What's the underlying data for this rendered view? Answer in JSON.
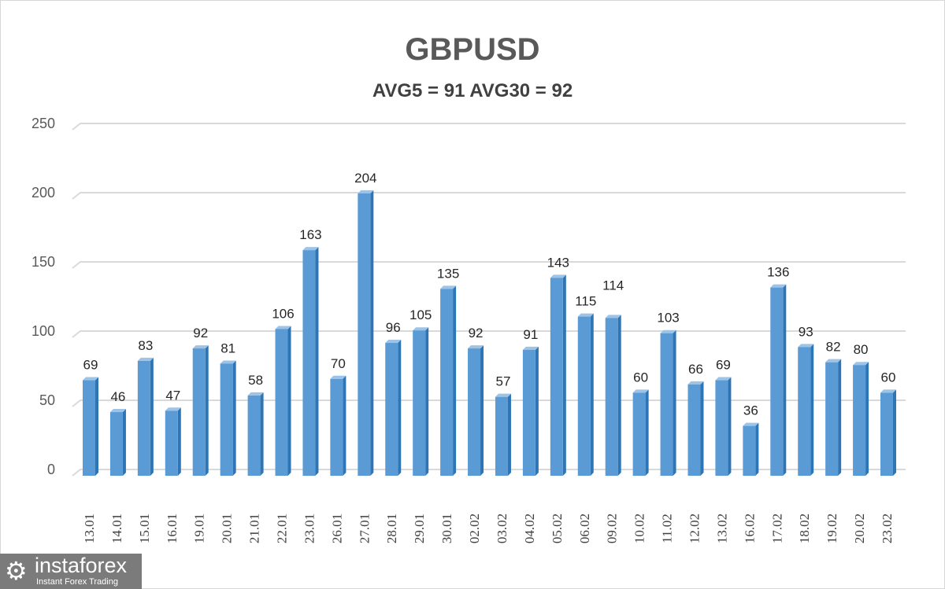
{
  "chart_data": {
    "type": "bar",
    "title": "GBPUSD",
    "subtitle": "AVG5 = 91 AVG30 = 92",
    "categories": [
      "13.01",
      "14.01",
      "15.01",
      "16.01",
      "19.01",
      "20.01",
      "21.01",
      "22.01",
      "23.01",
      "26.01",
      "27.01",
      "28.01",
      "29.01",
      "30.01",
      "02.02",
      "03.02",
      "04.02",
      "05.02",
      "06.02",
      "09.02",
      "10.02",
      "11.02",
      "12.02",
      "13.02",
      "16.02",
      "17.02",
      "18.02",
      "19.02",
      "20.02",
      "23.02"
    ],
    "values": [
      69,
      46,
      83,
      47,
      92,
      81,
      58,
      106,
      163,
      70,
      204,
      96,
      105,
      135,
      92,
      57,
      91,
      143,
      115,
      114,
      60,
      103,
      66,
      69,
      36,
      136,
      93,
      82,
      80,
      60
    ],
    "ylim": [
      0,
      250
    ],
    "yticks": [
      0,
      50,
      100,
      150,
      200,
      250
    ],
    "grid": true,
    "bar_color": "#5b9bd5",
    "data_labels": true
  },
  "logo": {
    "name": "instaforex",
    "tagline": "Instant Forex Trading"
  }
}
